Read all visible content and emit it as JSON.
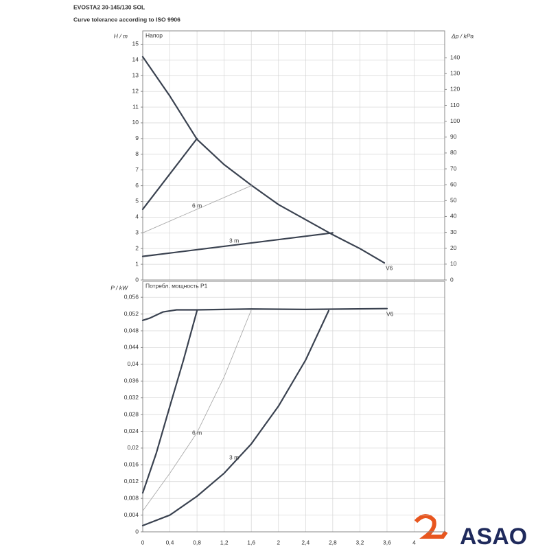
{
  "title": "EVOSTA2 30-145/130 SOL",
  "subtitle": "Curve tolerance according to ISO 9906",
  "logo": "ASAO",
  "chart_data": [
    {
      "type": "line",
      "panel_label": "Напор",
      "ylabel": "H / m",
      "y2label": "Δp / kPa",
      "xlim": [
        0,
        4.45
      ],
      "ylim": [
        0,
        15.85
      ],
      "y2lim": [
        0,
        156.9
      ],
      "grid": true,
      "yticks": [
        0,
        1,
        2,
        3,
        4,
        5,
        6,
        7,
        8,
        9,
        10,
        11,
        12,
        13,
        14,
        15
      ],
      "y2ticks": [
        0,
        10,
        20,
        30,
        40,
        50,
        60,
        70,
        80,
        90,
        100,
        110,
        120,
        130,
        140
      ],
      "series": [
        {
          "name": "V6",
          "color": "#3a4250",
          "width": 2.2,
          "x": [
            0,
            0.4,
            0.8,
            1.2,
            1.6,
            2.0,
            2.4,
            2.8,
            3.2,
            3.56
          ],
          "values": [
            14.2,
            11.7,
            8.95,
            7.34,
            6.03,
            4.8,
            3.84,
            2.88,
            2.0,
            1.09
          ]
        },
        {
          "color": "#3a4250",
          "width": 2.2,
          "x": [
            0,
            0.8
          ],
          "values": [
            4.5,
            9.0
          ]
        },
        {
          "name": "6 m",
          "color": "#aaaaaa",
          "width": 0.9,
          "x": [
            0,
            1.6
          ],
          "values": [
            3.0,
            6.0
          ]
        },
        {
          "name": "3 m",
          "color": "#3a4250",
          "width": 2.2,
          "x": [
            0,
            2.8
          ],
          "values": [
            1.5,
            3.0
          ]
        }
      ]
    },
    {
      "type": "line",
      "panel_label": "Потребл. мощность P1",
      "ylabel": "P  / kW",
      "xlim": [
        0,
        4.45
      ],
      "ylim": [
        0,
        0.0598
      ],
      "grid": true,
      "xticks": [
        0,
        {
          "value": 0.4,
          "label": "0,4"
        },
        {
          "value": 0.8,
          "label": "0,8"
        },
        {
          "value": 1.2,
          "label": "1,2"
        },
        {
          "value": 1.6,
          "label": "1,6"
        },
        2,
        {
          "value": 2.4,
          "label": "2,4"
        },
        {
          "value": 2.8,
          "label": "2,8"
        },
        {
          "value": 3.2,
          "label": "3,2"
        },
        {
          "value": 3.6,
          "label": "3,6"
        },
        4
      ],
      "yticks": [
        0,
        {
          "value": 0.004,
          "label": "0,004"
        },
        {
          "value": 0.008,
          "label": "0,008"
        },
        {
          "value": 0.012,
          "label": "0,012"
        },
        {
          "value": 0.016,
          "label": "0,016"
        },
        {
          "value": 0.02,
          "label": "0,02"
        },
        {
          "value": 0.024,
          "label": "0,024"
        },
        {
          "value": 0.028,
          "label": "0,028"
        },
        {
          "value": 0.032,
          "label": "0,032"
        },
        {
          "value": 0.036,
          "label": "0,036"
        },
        {
          "value": 0.04,
          "label": "0,04"
        },
        {
          "value": 0.044,
          "label": "0,044"
        },
        {
          "value": 0.048,
          "label": "0,048"
        },
        {
          "value": 0.052,
          "label": "0,052"
        },
        {
          "value": 0.056,
          "label": "0,056"
        }
      ],
      "series": [
        {
          "name": "V6",
          "color": "#3a4250",
          "width": 2.2,
          "x": [
            0,
            0.1,
            0.3,
            0.5,
            0.8,
            1.6,
            2.4,
            3.6
          ],
          "values": [
            0.0505,
            0.051,
            0.0525,
            0.053,
            0.053,
            0.0532,
            0.0531,
            0.0533
          ]
        },
        {
          "color": "#3a4250",
          "width": 2.2,
          "x": [
            0,
            0.2,
            0.4,
            0.6,
            0.8
          ],
          "values": [
            0.0093,
            0.0188,
            0.03,
            0.041,
            0.0528
          ]
        },
        {
          "name": "6 m",
          "color": "#aaaaaa",
          "width": 0.9,
          "x": [
            0,
            0.4,
            0.8,
            1.2,
            1.6
          ],
          "values": [
            0.005,
            0.014,
            0.0237,
            0.037,
            0.053
          ]
        },
        {
          "name": "3 m",
          "color": "#3a4250",
          "width": 2.2,
          "x": [
            0,
            0.4,
            0.8,
            1.2,
            1.6,
            2.0,
            2.4,
            2.74
          ],
          "values": [
            0.0015,
            0.004,
            0.0085,
            0.014,
            0.021,
            0.03,
            0.041,
            0.0528
          ]
        }
      ]
    }
  ]
}
